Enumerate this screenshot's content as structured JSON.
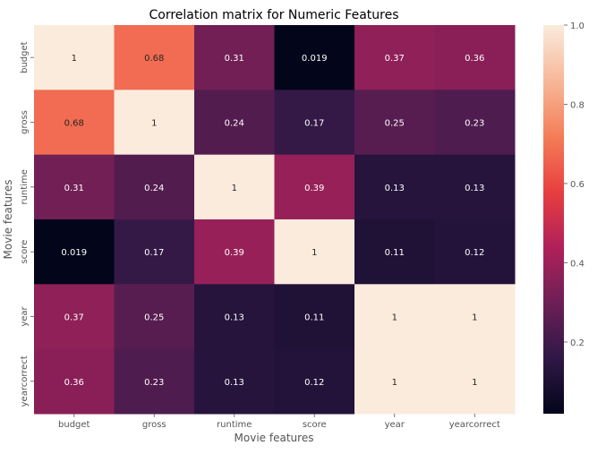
{
  "chart_data": {
    "type": "heatmap",
    "title": "Correlation matrix for Numeric Features",
    "xlabel": "Movie features",
    "ylabel": "Movie features",
    "x_categories": [
      "budget",
      "gross",
      "runtime",
      "score",
      "year",
      "yearcorrect"
    ],
    "y_categories": [
      "budget",
      "gross",
      "runtime",
      "score",
      "year",
      "yearcorrect"
    ],
    "values": [
      [
        1,
        0.68,
        0.31,
        0.019,
        0.37,
        0.36
      ],
      [
        0.68,
        1,
        0.24,
        0.17,
        0.25,
        0.23
      ],
      [
        0.31,
        0.24,
        1,
        0.39,
        0.13,
        0.13
      ],
      [
        0.019,
        0.17,
        0.39,
        1,
        0.11,
        0.12
      ],
      [
        0.37,
        0.25,
        0.13,
        0.11,
        1,
        1
      ],
      [
        0.36,
        0.23,
        0.13,
        0.12,
        1,
        1
      ]
    ],
    "annotations": [
      [
        "1",
        "0.68",
        "0.31",
        "0.019",
        "0.37",
        "0.36"
      ],
      [
        "0.68",
        "1",
        "0.24",
        "0.17",
        "0.25",
        "0.23"
      ],
      [
        "0.31",
        "0.24",
        "1",
        "0.39",
        "0.13",
        "0.13"
      ],
      [
        "0.019",
        "0.17",
        "0.39",
        "1",
        "0.11",
        "0.12"
      ],
      [
        "0.37",
        "0.25",
        "0.13",
        "0.11",
        "1",
        "1"
      ],
      [
        "0.36",
        "0.23",
        "0.13",
        "0.12",
        "1",
        "1"
      ]
    ],
    "colorbar": {
      "range": [
        0.019,
        1.0
      ],
      "ticks": [
        "0.2",
        "0.4",
        "0.6",
        "0.8",
        "1.0"
      ],
      "tick_values": [
        0.2,
        0.4,
        0.6,
        0.8,
        1.0
      ],
      "colormap": "rocket",
      "color_stops": [
        "#03051a",
        "#2f1846",
        "#6d1f56",
        "#b0205a",
        "#e83f3f",
        "#f47e59",
        "#f7b899",
        "#faebdd"
      ]
    },
    "grid": false,
    "legend": "colorbar-right"
  }
}
